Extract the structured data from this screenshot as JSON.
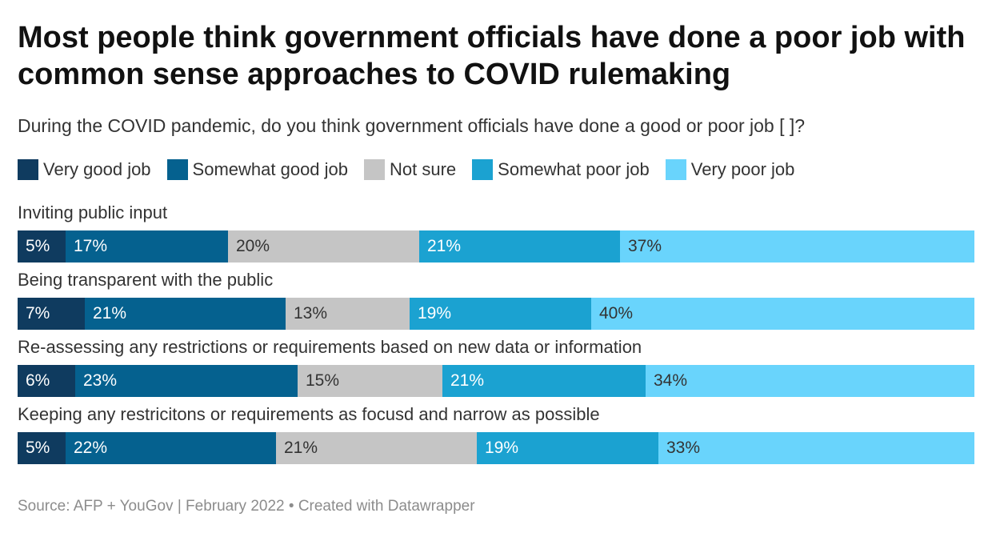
{
  "header": {
    "title": "Most people think government officials have done a poor job with common sense approaches to COVID rulemaking",
    "subtitle": "During the COVID pandemic, do you think government officials have done a good or poor job [ ]?"
  },
  "footer": {
    "source": "Source: AFP + YouGov | February 2022 • Created with Datawrapper"
  },
  "chart_data": {
    "type": "bar",
    "orientation": "horizontal",
    "stacked": true,
    "normalized_to_100": true,
    "unit": "%",
    "title": "Most people think government officials have done a poor job with common sense approaches to COVID rulemaking",
    "subtitle": "During the COVID pandemic, do you think government officials have done a good or poor job [ ]?",
    "legend_position": "top",
    "grid": false,
    "categories": [
      "Inviting public input",
      "Being transparent with the public",
      "Re-assessing any restrictions or requirements based on new data or information",
      "Keeping any restricitons or requirements as focusd and narrow as possible"
    ],
    "series": [
      {
        "name": "Very good job",
        "color": "#0f3b5f",
        "label_color": "#ffffff",
        "values": [
          5,
          7,
          6,
          5
        ],
        "labels": [
          "5%",
          "7%",
          "6%",
          "5%"
        ]
      },
      {
        "name": "Somewhat good job",
        "color": "#05618f",
        "label_color": "#ffffff",
        "values": [
          17,
          21,
          23,
          22
        ],
        "labels": [
          "17%",
          "21%",
          "23%",
          "22%"
        ]
      },
      {
        "name": "Not sure",
        "color": "#c5c5c5",
        "label_color": "#333333",
        "values": [
          20,
          13,
          15,
          21
        ],
        "labels": [
          "20%",
          "13%",
          "15%",
          "21%"
        ]
      },
      {
        "name": "Somewhat poor job",
        "color": "#1ba2d1",
        "label_color": "#ffffff",
        "values": [
          21,
          19,
          21,
          19
        ],
        "labels": [
          "21%",
          "19%",
          "21%",
          "19%"
        ]
      },
      {
        "name": "Very poor job",
        "color": "#69d4fc",
        "label_color": "#333333",
        "values": [
          37,
          40,
          34,
          33
        ],
        "labels": [
          "37%",
          "40%",
          "34%",
          "33%"
        ]
      }
    ]
  }
}
